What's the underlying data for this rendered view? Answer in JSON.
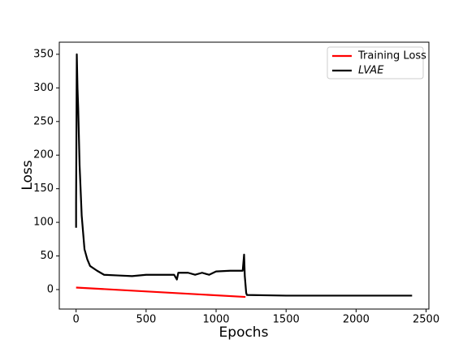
{
  "chart_data": {
    "type": "line",
    "x_label": "Epochs",
    "y_label": "Loss",
    "xlim": [
      -120,
      2520
    ],
    "ylim": [
      -29,
      368
    ],
    "xticks": [
      0,
      500,
      1000,
      1500,
      2000,
      2500
    ],
    "yticks": [
      0,
      50,
      100,
      150,
      200,
      250,
      300,
      350
    ],
    "legend": "upper right",
    "series": [
      {
        "name": "Training Loss",
        "color": "#ff0000",
        "x": [
          0,
          1210
        ],
        "values": [
          3,
          -11
        ]
      },
      {
        "name": "LVAE",
        "color": "#000000",
        "x": [
          0,
          0,
          5,
          10,
          15,
          25,
          40,
          60,
          80,
          100,
          150,
          200,
          300,
          400,
          500,
          600,
          700,
          720,
          730,
          800,
          850,
          900,
          950,
          1000,
          1100,
          1190,
          1200,
          1205,
          1215,
          1220,
          1500,
          2000,
          2400
        ],
        "values": [
          92,
          130,
          350,
          300,
          270,
          185,
          110,
          60,
          45,
          35,
          28,
          22,
          21,
          20,
          22,
          22,
          22,
          15,
          25,
          25,
          22,
          25,
          22,
          27,
          28,
          28,
          52,
          20,
          -5,
          -8,
          -9,
          -9,
          -9
        ]
      }
    ]
  }
}
